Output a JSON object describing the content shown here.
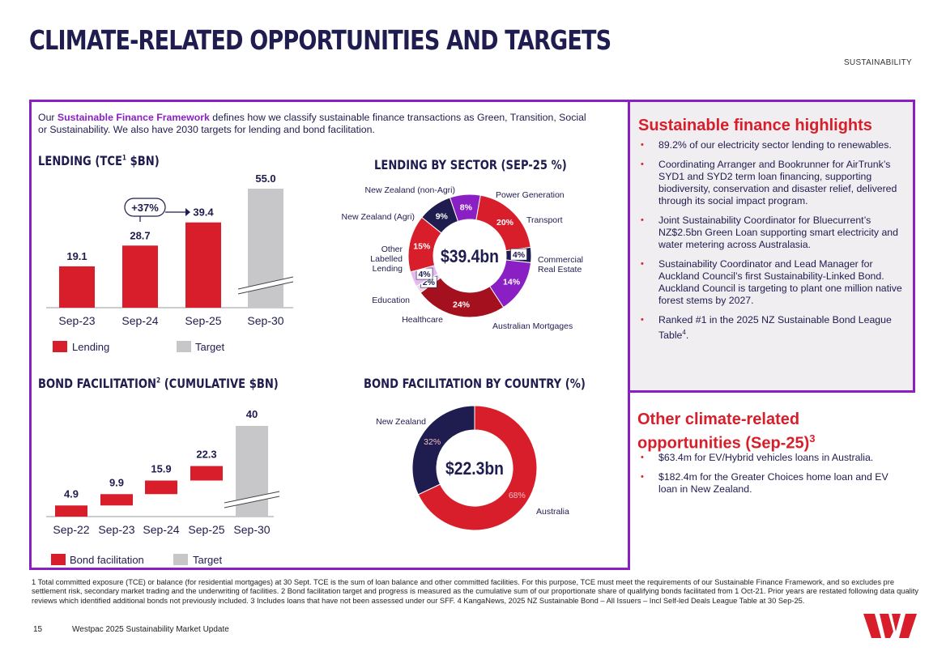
{
  "page": {
    "title": "CLIMATE-RELATED OPPORTUNITIES AND TARGETS",
    "section": "SUSTAINABILITY",
    "page_number": "15",
    "doc_name": "Westpac 2025 Sustainability Market Update"
  },
  "intro": {
    "prefix": "Our ",
    "link": "Sustainable Finance Framework",
    "rest": " defines how we classify sustainable finance transactions as Green, Transition, Social or Sustainability. We also have 2030 targets for lending and bond facilitation."
  },
  "lending": {
    "title_a": "LENDING (TCE",
    "title_sup": "1",
    "title_b": " $BN)",
    "growth_label": "+37%",
    "legend": {
      "series": "Lending",
      "target": "Target"
    }
  },
  "bond": {
    "title_a": "BOND FACILITATION",
    "title_sup": "2",
    "title_b": " (CUMULATIVE $BN)",
    "legend": {
      "series": "Bond facilitation",
      "target": "Target"
    }
  },
  "sector": {
    "title": "LENDING BY SECTOR (SEP-25 %)",
    "center_label": "$39.4bn"
  },
  "country": {
    "title": "BOND FACILITATION BY COUNTRY (%)",
    "center_label": "$22.3bn"
  },
  "chart_data": [
    {
      "type": "bar",
      "title": "LENDING (TCE1 $BN)",
      "categories": [
        "Sep-23",
        "Sep-24",
        "Sep-25",
        "Sep-30"
      ],
      "series": [
        {
          "name": "Lending",
          "values": [
            19.1,
            28.7,
            39.4,
            null
          ],
          "color": "#d81e2a"
        },
        {
          "name": "Target",
          "values": [
            null,
            null,
            null,
            55.0
          ],
          "color": "#c7c6c8"
        }
      ],
      "value_labels": [
        "19.1",
        "28.7",
        "39.4",
        "55.0"
      ],
      "annotation": "+37%",
      "ylim": [
        0,
        60
      ]
    },
    {
      "type": "bar",
      "subtype": "waterfall",
      "title": "BOND FACILITATION2 (CUMULATIVE $BN)",
      "categories": [
        "Sep-22",
        "Sep-23",
        "Sep-24",
        "Sep-25",
        "Sep-30"
      ],
      "series": [
        {
          "name": "Bond facilitation",
          "values": [
            4.9,
            9.9,
            15.9,
            22.3,
            null
          ],
          "color": "#d81e2a"
        },
        {
          "name": "Target",
          "values": [
            null,
            null,
            null,
            null,
            40
          ],
          "color": "#c7c6c8"
        }
      ],
      "value_labels": [
        "4.9",
        "9.9",
        "15.9",
        "22.3",
        "40"
      ],
      "ylim": [
        0,
        42
      ]
    },
    {
      "type": "pie",
      "subtype": "donut",
      "title": "LENDING BY SECTOR (SEP-25 %)",
      "center_label": "$39.4bn",
      "slices": [
        {
          "label": "Power Generation",
          "value": 20,
          "text": "20%",
          "color": "#d81e2a"
        },
        {
          "label": "Transport",
          "value": 4,
          "text": "4%",
          "color": "#1f1c4f"
        },
        {
          "label": "Commercial Real Estate",
          "value": 14,
          "text": "14%",
          "color": "#8a1fc4"
        },
        {
          "label": "Australian Mortgages",
          "value": 24,
          "text": "24%",
          "color": "#a4101d"
        },
        {
          "label": "Healthcare",
          "value": 2,
          "text": "2%",
          "color": "#f2d6ec"
        },
        {
          "label": "Education",
          "value": 4,
          "text": "4%",
          "color": "#e3b9f0"
        },
        {
          "label": "Other Labelled Lending",
          "value": 15,
          "text": "15%",
          "color": "#d81e2a"
        },
        {
          "label": "New Zealand (Agri)",
          "value": 9,
          "text": "9%",
          "color": "#1f1c4f"
        },
        {
          "label": "New Zealand (non-Agri)",
          "value": 8,
          "text": "8%",
          "color": "#8a1fc4"
        }
      ]
    },
    {
      "type": "pie",
      "subtype": "donut",
      "title": "BOND FACILITATION BY COUNTRY (%)",
      "center_label": "$22.3bn",
      "slices": [
        {
          "label": "Australia",
          "value": 68,
          "text": "68%",
          "color": "#d81e2a"
        },
        {
          "label": "New Zealand",
          "value": 32,
          "text": "32%",
          "color": "#1f1c4f"
        }
      ]
    }
  ],
  "highlights": {
    "title": "Sustainable finance highlights",
    "items": [
      {
        "text": "89.2% of our electricity sector lending to renewables."
      },
      {
        "text": "Coordinating Arranger and Bookrunner for AirTrunk’s SYD1 and SYD2 term loan financing, supporting biodiversity, conservation and disaster relief, delivered through its social impact program."
      },
      {
        "text": "Joint Sustainability Coordinator for Bluecurrent’s NZ$2.5bn Green Loan supporting smart electricity and water metering across Australasia."
      },
      {
        "text": "Sustainability Coordinator and Lead Manager for Auckland Council’s first Sustainability-Linked Bond. Auckland Council is targeting to plant one million native forest stems by 2027."
      },
      {
        "text": "Ranked #1 in the 2025 NZ Sustainable Bond League Table",
        "sup": "4",
        "tail": "."
      }
    ]
  },
  "other": {
    "title": "Other climate-related opportunities (Sep-25)",
    "title_sup": "3",
    "items": [
      {
        "text": "$63.4m for EV/Hybrid vehicles loans in Australia."
      },
      {
        "text": "$182.4m for the Greater Choices home loan and EV loan in New Zealand."
      }
    ]
  },
  "footnote": "1 Total committed exposure (TCE) or balance (for residential mortgages) at 30 Sept. TCE is the sum of loan balance and other committed facilities. For this purpose, TCE must meet the requirements of our Sustainable Finance Framework, and so excludes pre settlement risk, secondary market trading and the underwriting of facilities. 2 Bond facilitation target and progress is measured as the cumulative sum of our proportionate share of qualifying bonds facilitated from 1 Oct-21. Prior years are restated following data quality reviews which identified additional bonds not previously included. 3 Includes loans that have not been assessed under our SFF. 4 KangaNews, 2025 NZ Sustainable Bond – All Issuers – Incl Self-led Deals League Table at 30 Sep-25.",
  "colors": {
    "navy": "#1f1c4f",
    "red": "#d81e2a",
    "purple": "#8a1fc4",
    "grey": "#c7c6c8",
    "panel_bg": "#f0eef1"
  }
}
